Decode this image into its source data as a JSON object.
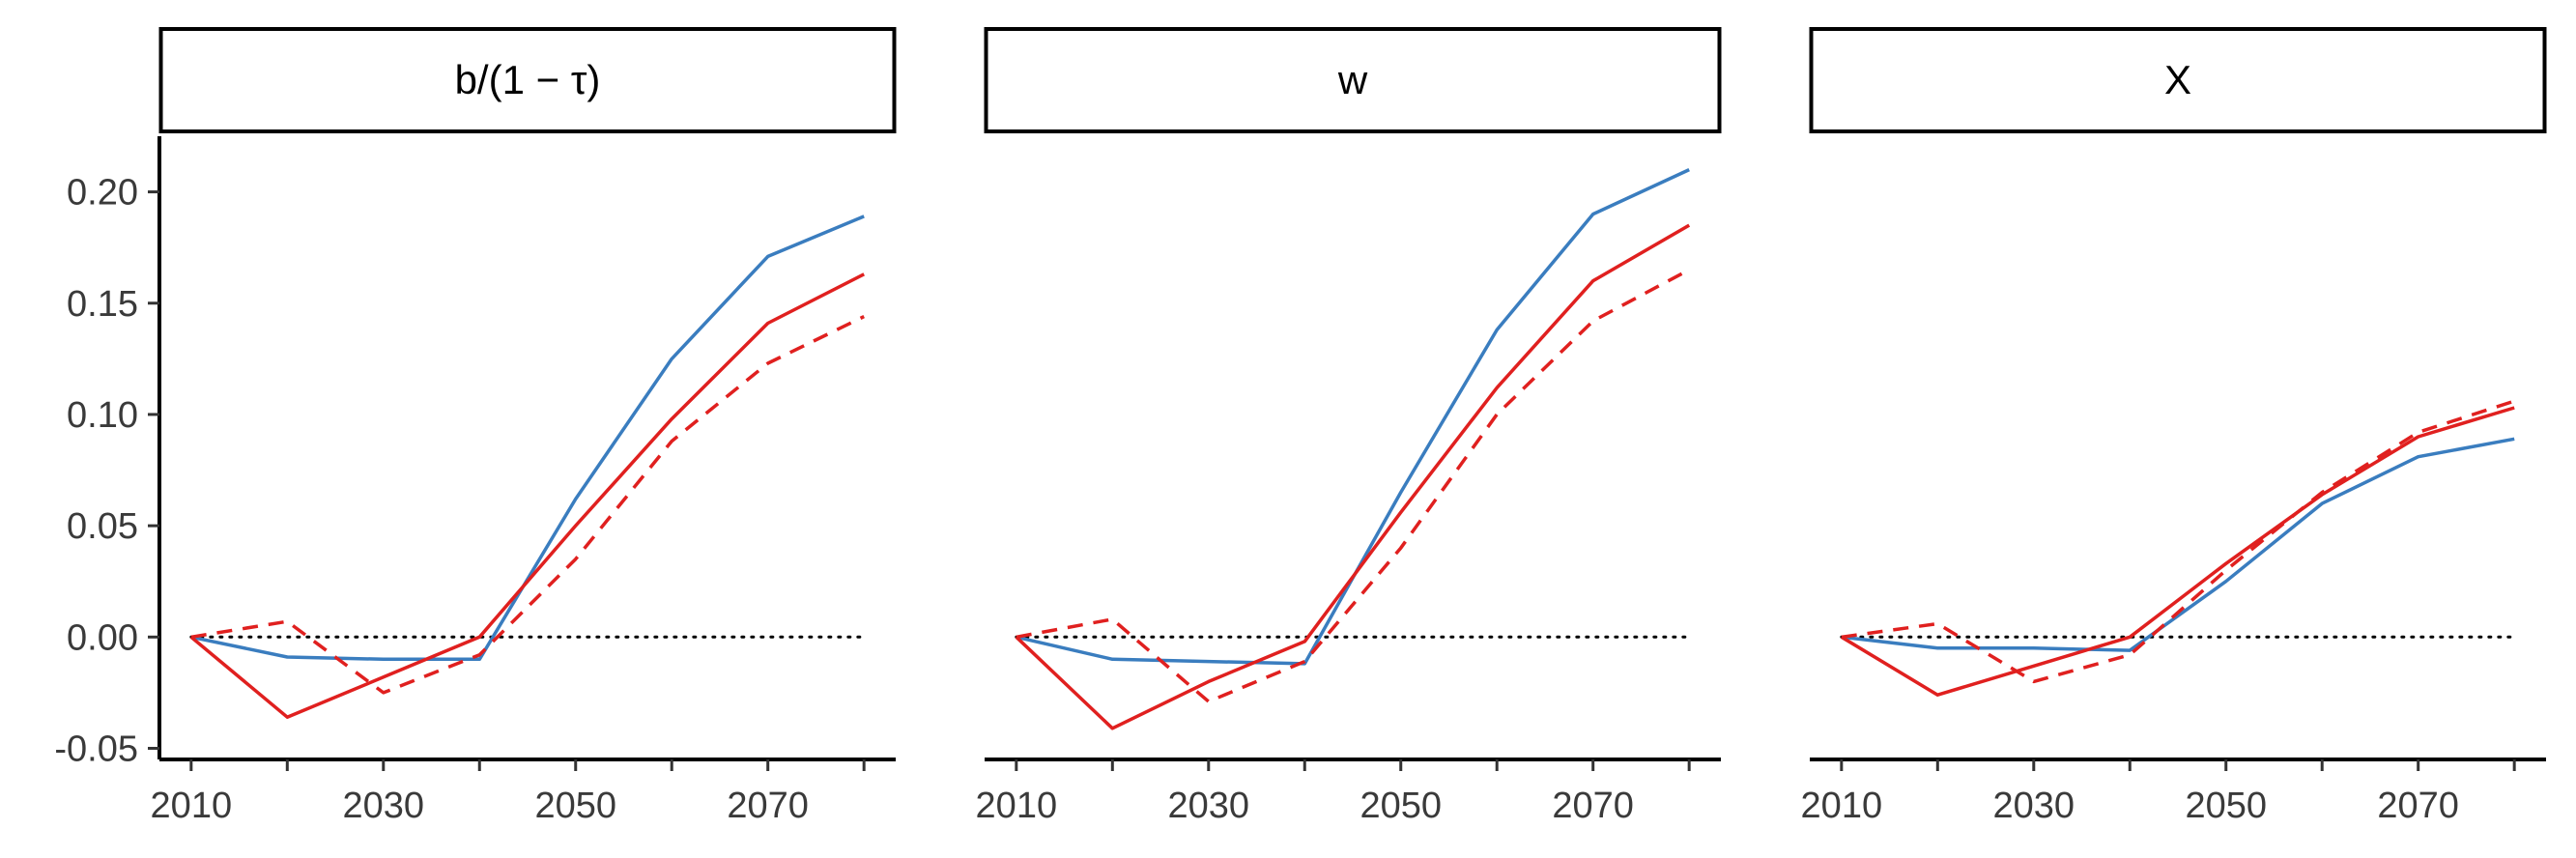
{
  "chart_data": [
    {
      "type": "line",
      "title": "b/(1 − τ)",
      "x": [
        2010,
        2020,
        2030,
        2040,
        2050,
        2060,
        2070,
        2080
      ],
      "xticks": [
        "2010",
        "2030",
        "2050",
        "2070"
      ],
      "ylim": [
        -0.055,
        0.225
      ],
      "yticks": [
        "-0.05",
        "0.00",
        "0.05",
        "0.10",
        "0.15",
        "0.20"
      ],
      "reference_line": 0,
      "series": [
        {
          "color": "#3a7dbf",
          "dash": "solid",
          "values": [
            0.0,
            -0.009,
            -0.01,
            -0.01,
            0.062,
            0.125,
            0.171,
            0.189
          ]
        },
        {
          "color": "#e0201f",
          "dash": "solid",
          "values": [
            0.0,
            -0.036,
            -0.018,
            0.0,
            0.05,
            0.098,
            0.141,
            0.163
          ]
        },
        {
          "color": "#e0201f",
          "dash": "dashed",
          "values": [
            0.0,
            0.007,
            -0.025,
            -0.008,
            0.035,
            0.088,
            0.123,
            0.144
          ]
        }
      ]
    },
    {
      "type": "line",
      "title": "w",
      "x": [
        2010,
        2020,
        2030,
        2040,
        2050,
        2060,
        2070,
        2080
      ],
      "xticks": [
        "2010",
        "2030",
        "2050",
        "2070"
      ],
      "ylim": [
        -0.055,
        0.225
      ],
      "reference_line": 0,
      "series": [
        {
          "color": "#3a7dbf",
          "dash": "solid",
          "values": [
            0.0,
            -0.01,
            -0.011,
            -0.012,
            0.065,
            0.138,
            0.19,
            0.21
          ]
        },
        {
          "color": "#e0201f",
          "dash": "solid",
          "values": [
            0.0,
            -0.041,
            -0.02,
            -0.002,
            0.056,
            0.112,
            0.16,
            0.185
          ]
        },
        {
          "color": "#e0201f",
          "dash": "dashed",
          "values": [
            0.0,
            0.008,
            -0.029,
            -0.011,
            0.04,
            0.1,
            0.142,
            0.165
          ]
        }
      ]
    },
    {
      "type": "line",
      "title": "X",
      "x": [
        2010,
        2020,
        2030,
        2040,
        2050,
        2060,
        2070,
        2080
      ],
      "xticks": [
        "2010",
        "2030",
        "2050",
        "2070"
      ],
      "ylim": [
        -0.055,
        0.225
      ],
      "reference_line": 0,
      "series": [
        {
          "color": "#3a7dbf",
          "dash": "solid",
          "values": [
            0.0,
            -0.005,
            -0.005,
            -0.006,
            0.025,
            0.06,
            0.081,
            0.089
          ]
        },
        {
          "color": "#e0201f",
          "dash": "solid",
          "values": [
            0.0,
            -0.026,
            -0.013,
            0.0,
            0.033,
            0.064,
            0.09,
            0.103
          ]
        },
        {
          "color": "#e0201f",
          "dash": "dashed",
          "values": [
            0.0,
            0.006,
            -0.02,
            -0.008,
            0.03,
            0.065,
            0.092,
            0.106
          ]
        }
      ]
    }
  ]
}
